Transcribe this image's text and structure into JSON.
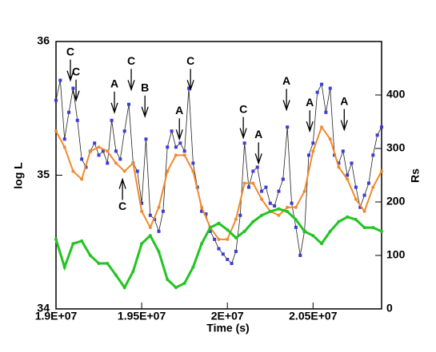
{
  "chart_data": {
    "type": "line",
    "xlabel": "Time (s)",
    "ylabel": "log L",
    "y2label": "Rs",
    "xlim": [
      19000000,
      20900000
    ],
    "xticks": [
      {
        "value": 19000000,
        "label": "1.9E+07"
      },
      {
        "value": 19500000,
        "label": "1.95E+07"
      },
      {
        "value": 20000000,
        "label": "2E+07"
      },
      {
        "value": 20500000,
        "label": "2.05E+07"
      }
    ],
    "ylim": [
      34,
      36
    ],
    "yticks": [
      34,
      35,
      36
    ],
    "y2lim": [
      0,
      500
    ],
    "y2ticks": [
      0,
      100,
      200,
      300,
      400
    ],
    "series": [
      {
        "color": "#3b3bdc",
        "marker": "square",
        "step": 25000,
        "values": [
          35.56,
          35.71,
          35.27,
          35.47,
          35.65,
          35.41,
          35.12,
          35.06,
          35.18,
          35.24,
          35.15,
          35.18,
          35.09,
          35.41,
          35.18,
          35.12,
          35.33,
          35.53,
          35.09,
          35.03,
          34.79,
          35.27,
          34.7,
          34.67,
          34.58,
          34.73,
          35.21,
          35.33,
          35.21,
          35.24,
          35.18,
          35.65,
          35.09,
          34.91,
          34.73,
          34.71,
          34.58,
          34.52,
          34.45,
          34.41,
          34.37,
          34.34,
          34.43,
          34.7,
          35.24,
          34.91,
          35.03,
          35.06,
          34.88,
          34.91,
          34.79,
          34.77,
          34.88,
          34.97,
          35.36,
          34.79,
          34.61,
          34.4,
          34.58,
          35.15,
          35.24,
          35.62,
          35.68,
          35.47,
          35.65,
          35.15,
          35.09,
          35.18,
          35.0,
          35.09,
          34.91,
          34.76,
          34.85,
          34.94,
          35.15,
          35.3,
          35.36
        ]
      },
      {
        "color": "#f08a2c",
        "marker": "circle",
        "step": 50000,
        "values": [
          35.33,
          35.21,
          35.03,
          34.97,
          35.18,
          35.21,
          35.18,
          35.09,
          35.03,
          35.09,
          34.73,
          34.61,
          34.76,
          35.03,
          35.15,
          35.15,
          35.03,
          34.76,
          34.61,
          34.52,
          34.52,
          34.67,
          34.94,
          34.94,
          34.82,
          34.73,
          34.7,
          34.76,
          34.76,
          34.88,
          35.18,
          35.36,
          35.27,
          35.06,
          34.97,
          34.82,
          34.73,
          34.91,
          35.03
        ]
      },
      {
        "color": "#22c422",
        "marker": "circle",
        "step": 50000,
        "axis": "y2",
        "values": [
          130,
          78,
          122,
          127,
          100,
          85,
          85,
          63,
          40,
          70,
          122,
          137,
          107,
          55,
          40,
          48,
          78,
          122,
          152,
          160,
          148,
          133,
          145,
          163,
          175,
          182,
          187,
          182,
          167,
          145,
          137,
          122,
          145,
          163,
          172,
          167,
          152,
          152,
          145
        ]
      }
    ],
    "annotations": [
      {
        "text": "C",
        "x": 19084000,
        "y": 35.71,
        "from": "above"
      },
      {
        "text": "C",
        "x": 19117000,
        "y": 35.56,
        "from": "above"
      },
      {
        "text": "A",
        "x": 19341000,
        "y": 35.47,
        "from": "above"
      },
      {
        "text": "C",
        "x": 19439000,
        "y": 35.64,
        "from": "above"
      },
      {
        "text": "B",
        "x": 19519000,
        "y": 35.44,
        "from": "above"
      },
      {
        "text": "A",
        "x": 19720000,
        "y": 35.27,
        "from": "above"
      },
      {
        "text": "C",
        "x": 19785000,
        "y": 35.64,
        "from": "above"
      },
      {
        "text": "C",
        "x": 20093000,
        "y": 35.28,
        "from": "above"
      },
      {
        "text": "A",
        "x": 20182000,
        "y": 35.09,
        "from": "above"
      },
      {
        "text": "A",
        "x": 20345000,
        "y": 35.49,
        "from": "above"
      },
      {
        "text": "A",
        "x": 20481000,
        "y": 35.33,
        "from": "above"
      },
      {
        "text": "A",
        "x": 20682000,
        "y": 35.34,
        "from": "above"
      },
      {
        "text": "C",
        "x": 19388000,
        "y": 34.97,
        "from": "below"
      }
    ]
  }
}
